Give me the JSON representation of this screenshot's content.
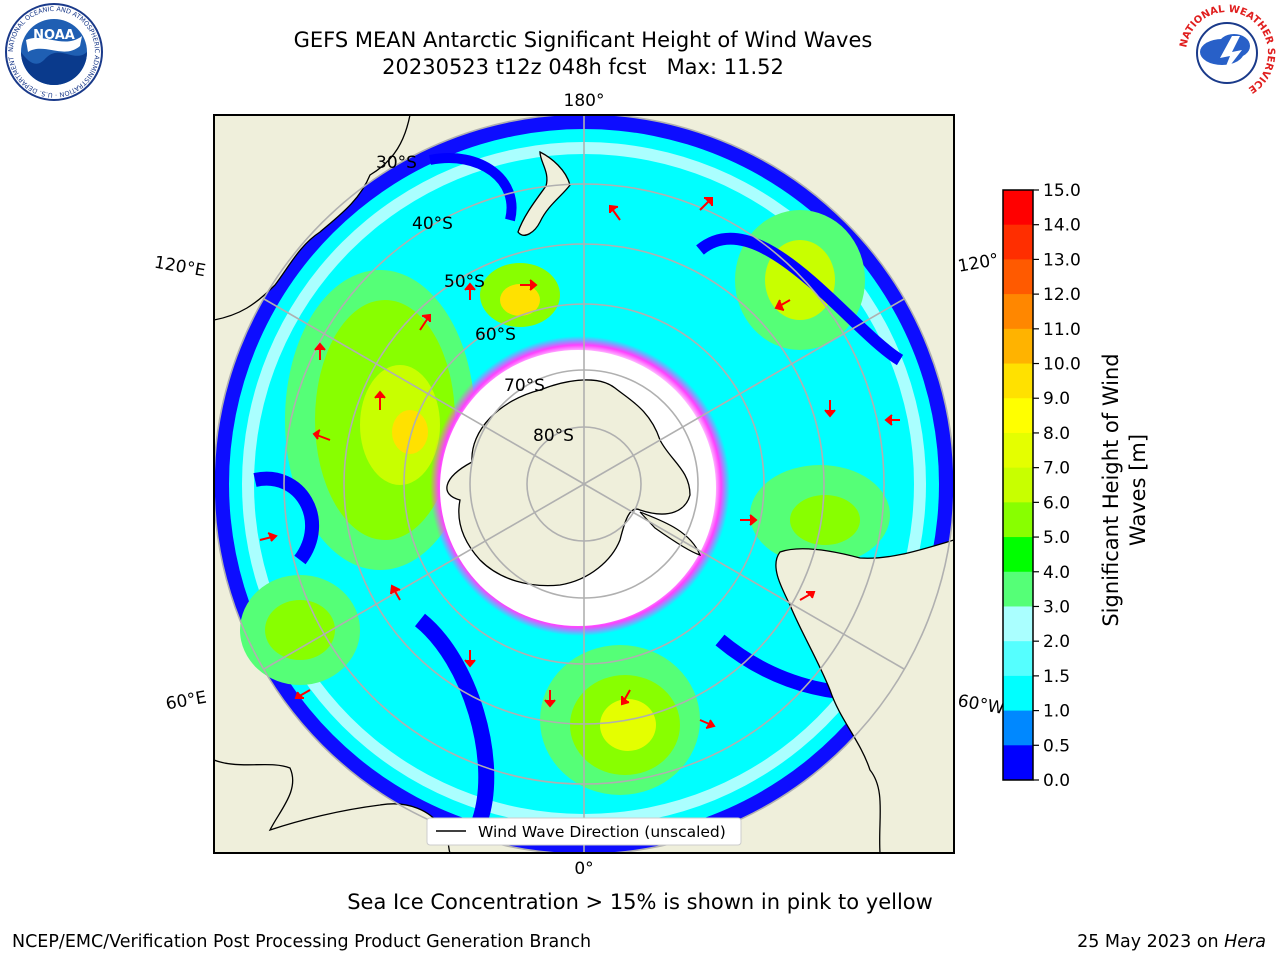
{
  "title": {
    "line1": "GEFS MEAN Antarctic Significant Height of Wind Waves",
    "line2": "20230523 t12z 048h fcst   Max: 11.52"
  },
  "map": {
    "longitude_labels": {
      "north": "180°",
      "south": "0°",
      "upper_left": "120°E",
      "lower_left": "60°E",
      "upper_right": "120°",
      "lower_right": "60°W"
    },
    "latitude_labels": [
      "30°S",
      "40°S",
      "50°S",
      "60°S",
      "70°S",
      "80°S"
    ],
    "legend": "Wind Wave Direction (unscaled)",
    "colors": {
      "land": "#efefdb",
      "graticule": "#b0b0b0",
      "arrow": "#ff0000",
      "sea_ice": "#ff3cff"
    }
  },
  "colorbar": {
    "label_line1": "Significant Height of Wind",
    "label_line2": "Waves [m]",
    "ticks": [
      "15.0",
      "14.0",
      "13.0",
      "12.0",
      "11.0",
      "10.0",
      "9.0",
      "8.0",
      "7.0",
      "6.0",
      "5.0",
      "4.0",
      "3.0",
      "2.0",
      "1.5",
      "1.0",
      "0.5",
      "0.0"
    ],
    "colors": [
      "#ff0000",
      "#ff2e00",
      "#ff5a00",
      "#ff8700",
      "#ffb300",
      "#ffe100",
      "#ffff00",
      "#e4ff00",
      "#c8ff00",
      "#88ff00",
      "#00ff00",
      "#55ff77",
      "#aaffff",
      "#55ffff",
      "#00ffff",
      "#0088ff",
      "#0000ff"
    ]
  },
  "annotation": "Sea Ice Concentration > 15% is shown in pink to yellow",
  "footer": {
    "left": "NCEP/EMC/Verification Post Processing Product Generation Branch",
    "right_date": "25 May 2023 on ",
    "right_host": "Hera"
  },
  "logos": {
    "noaa": "NOAA",
    "noaa_ring": "NATIONAL OCEANIC AND ATMOSPHERIC ADMINISTRATION · U.S. DEPARTMENT OF COMMERCE",
    "nws_ring": "NATIONAL WEATHER SERVICE"
  }
}
